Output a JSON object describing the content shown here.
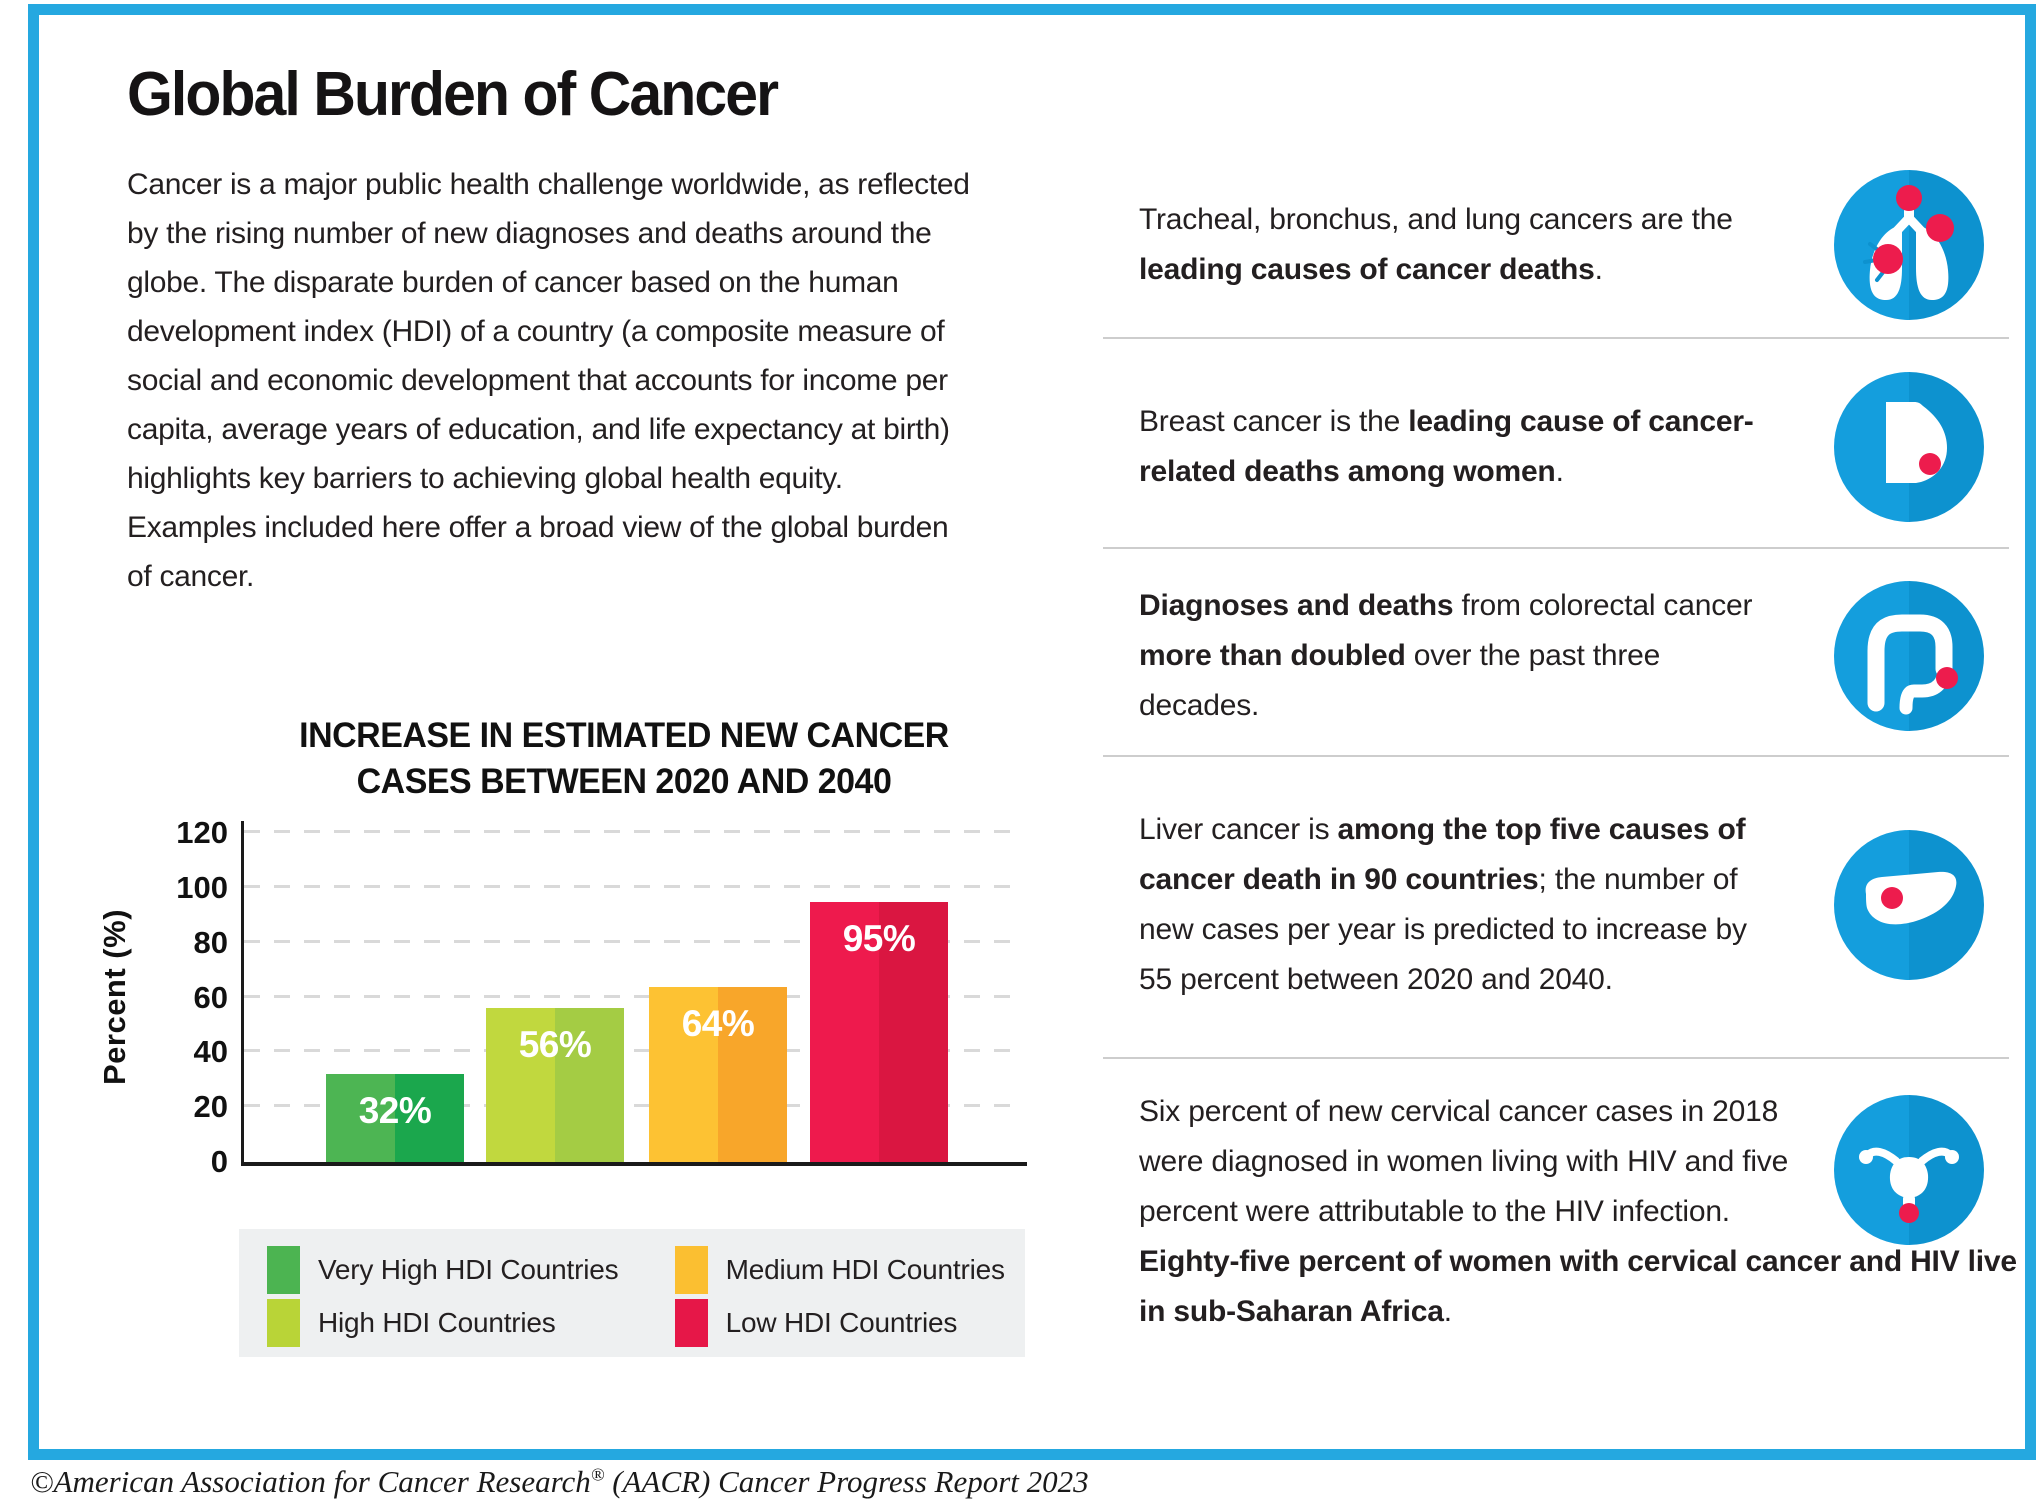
{
  "header": {
    "title": "Global Burden of Cancer"
  },
  "intro": {
    "text": "Cancer is a major public health challenge worldwide, as reflected by the rising number of new diagnoses and deaths around the globe. The disparate burden of cancer based on the human development index (HDI) of a country (a composite measure of social and economic development that accounts for income per capita, average years of education, and life expectancy at birth) highlights key barriers to achieving global health equity. Examples included here offer a broad view of the global burden of cancer."
  },
  "chart_data": {
    "type": "bar",
    "title": "INCREASE IN ESTIMATED NEW CANCER CASES BETWEEN 2020 AND 2040",
    "title_line1": "INCREASE IN ESTIMATED NEW CANCER",
    "title_line2": "CASES BETWEEN 2020 AND 2040",
    "xlabel": "",
    "ylabel": "Percent (%)",
    "ylim": [
      0,
      120
    ],
    "yticks": [
      0,
      20,
      40,
      60,
      80,
      100,
      120
    ],
    "ytick_labels": [
      "0",
      "20",
      "40",
      "60",
      "80",
      "100",
      "120"
    ],
    "grid": "horizontal-dashed",
    "legend_position": "bottom",
    "categories": [
      "Very High HDI Countries",
      "High HDI Countries",
      "Medium HDI Countries",
      "Low HDI Countries"
    ],
    "values": [
      32,
      56,
      64,
      95
    ],
    "bars": [
      {
        "category": "Very High HDI Countries",
        "value": 32,
        "label": "32%",
        "color_left": "#4db553",
        "color_right": "#1ba74d",
        "legend_color": "#4cb451"
      },
      {
        "category": "High HDI Countries",
        "value": 56,
        "label": "56%",
        "color_left": "#c1d83e",
        "color_right": "#a4cc44",
        "legend_color": "#b9d437"
      },
      {
        "category": "Medium HDI Countries",
        "value": 64,
        "label": "64%",
        "color_left": "#fdc233",
        "color_right": "#f8a62a",
        "legend_color": "#fbbf31"
      },
      {
        "category": "Low HDI Countries",
        "value": 95,
        "label": "95%",
        "color_left": "#ee1a4d",
        "color_right": "#da1641",
        "legend_color": "#e61748"
      }
    ]
  },
  "facts": [
    {
      "icon": "lungs-icon",
      "segments": [
        {
          "text": "Tracheal, bronchus, and lung cancers are the ",
          "bold": false
        },
        {
          "text": "leading causes of cancer deaths",
          "bold": true
        },
        {
          "text": ".",
          "bold": false
        }
      ]
    },
    {
      "icon": "breast-icon",
      "segments": [
        {
          "text": "Breast cancer is the ",
          "bold": false
        },
        {
          "text": "leading cause of cancer-related deaths among women",
          "bold": true
        },
        {
          "text": ".",
          "bold": false
        }
      ]
    },
    {
      "icon": "colon-icon",
      "segments": [
        {
          "text": "Diagnoses and deaths",
          "bold": true
        },
        {
          "text": " from colorectal cancer ",
          "bold": false
        },
        {
          "text": "more than doubled",
          "bold": true
        },
        {
          "text": " over the past three decades.",
          "bold": false
        }
      ]
    },
    {
      "icon": "liver-icon",
      "segments": [
        {
          "text": "Liver cancer is ",
          "bold": false
        },
        {
          "text": "among the top five causes of cancer death in 90 countries",
          "bold": true
        },
        {
          "text": "; the number of new cases per year is predicted to increase by 55 percent between 2020 and 2040.",
          "bold": false
        }
      ]
    },
    {
      "icon": "uterus-icon",
      "segments": [
        {
          "text": "Six percent of new cervical cancer cases in 2018 were diagnosed in women living with HIV and five percent were attributable to the HIV infection.",
          "bold": false
        },
        {
          "text": "Eighty-five percent of women with cervical cancer and HIV live in sub-Saharan Africa",
          "bold": true
        },
        {
          "text": ".",
          "bold": false
        }
      ]
    }
  ],
  "footer": {
    "pre": "©American Association for Cancer Research",
    "sup": "®",
    "post": " (AACR) Cancer Progress Report 2023"
  },
  "colors": {
    "frame_border": "#25a8e0",
    "icon_circle_left": "#149edd",
    "icon_circle_right": "#0d92cf",
    "icon_dot": "#ed1c4d",
    "divider": "#cdcdcd",
    "legend_background": "#eef0f1",
    "text": "#231f20",
    "gridline": "#d9d9d9"
  }
}
